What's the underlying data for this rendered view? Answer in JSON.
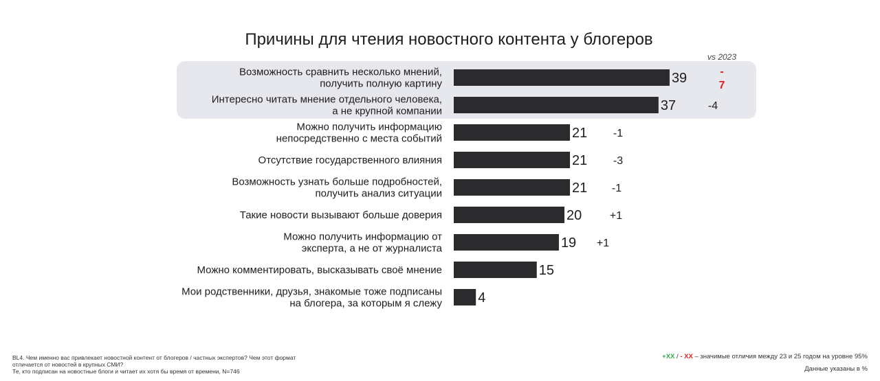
{
  "chart_data": {
    "type": "bar",
    "orientation": "horizontal",
    "title": "Причины для чтения новостного контента у блогеров",
    "comparison_label": "vs 2023",
    "categories": [
      [
        "Возможность сравнить несколько мнений,",
        "получить полную картину"
      ],
      [
        "Интересно читать мнение отдельного человека,",
        "а не крупной компании"
      ],
      [
        "Можно получить информацию",
        "непосредственно с места событий"
      ],
      [
        "Отсутствие государственного влияния"
      ],
      [
        "Возможность узнать больше подробностей,",
        "получить анализ ситуации"
      ],
      [
        "Такие новости вызывают больше доверия"
      ],
      [
        "Можно получить информацию от",
        "эксперта, а не от журналиста"
      ],
      [
        "Можно комментировать, высказывать своё мнение"
      ],
      [
        "Мои родственники,  друзья, знакомые тоже подписаны",
        "на блогера, за которым я слежу"
      ]
    ],
    "values": [
      39,
      37,
      21,
      21,
      21,
      20,
      19,
      15,
      4
    ],
    "diffs": [
      {
        "text": [
          "-",
          "7"
        ],
        "significant": true
      },
      {
        "text": [
          "-4"
        ],
        "significant": false
      },
      {
        "text": [
          "-1"
        ],
        "significant": false
      },
      {
        "text": [
          "-3"
        ],
        "significant": false
      },
      {
        "text": [
          "-1"
        ],
        "significant": false
      },
      {
        "text": [
          "+1"
        ],
        "significant": false
      },
      {
        "text": [
          "+1"
        ],
        "significant": false
      },
      {
        "text": [],
        "significant": false
      },
      {
        "text": [],
        "significant": false
      }
    ],
    "highlighted_rows": [
      0,
      1
    ],
    "xlim": [
      0,
      45
    ],
    "grid": false,
    "colors": {
      "bar": "#2b2b2e",
      "highlight": "#e6e8ee",
      "negative": "#e02020",
      "positive": "#2fa84f",
      "neutral": "#1d1d1f"
    }
  },
  "footnote": {
    "question_line1": "BL4. Чем именно вас привлекает новостной контент от блогеров / частных экспертов? Чем этот формат",
    "question_line2": "отличается от новостей в крупных СМИ?",
    "question_line3": "Те, кто подписан на новостные блоги и читает их хотя бы время от времени, N=746",
    "legend_pos": "+XX",
    "legend_sep": " / ",
    "legend_neg": "- XX",
    "legend_text": " – значимые отличия между 23 и 25 годом на уровне 95%",
    "units_note": "Данные указаны в %"
  }
}
